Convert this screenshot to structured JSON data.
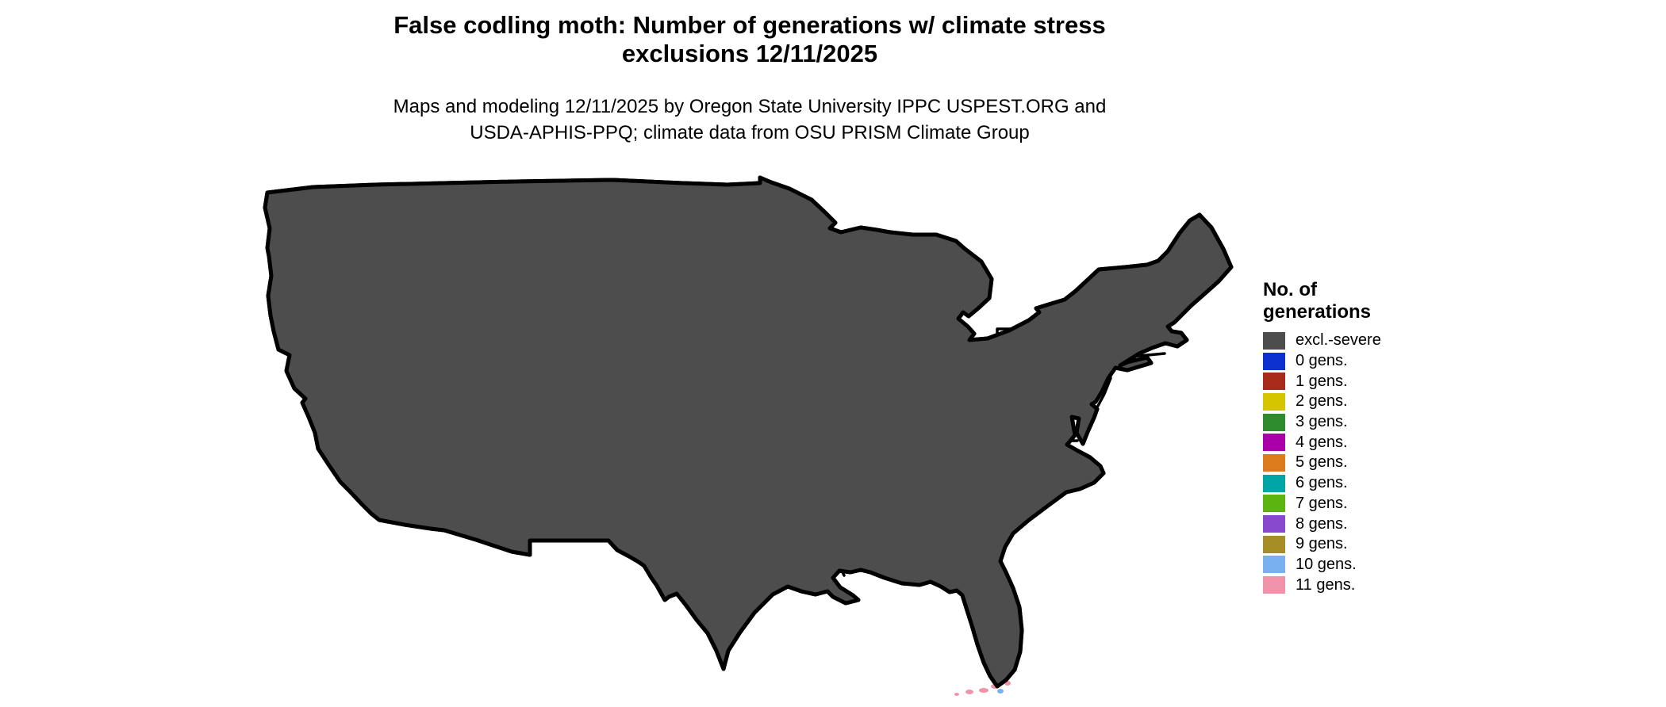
{
  "title": {
    "line1": "False codling moth: Number of generations w/ climate stress",
    "line2": "exclusions 12/11/2025"
  },
  "subtitle": {
    "line1": "Maps and modeling 12/11/2025 by Oregon State University IPPC USPEST.ORG and",
    "line2": "USDA-APHIS-PPQ; climate data from OSU PRISM Climate Group"
  },
  "legend": {
    "title_line1": "No. of",
    "title_line2": "generations",
    "items": [
      {
        "gen": "excl",
        "label": "excl.-severe",
        "color": "#4D4D4D"
      },
      {
        "gen": "0",
        "label": "0 gens.",
        "color": "#0C31CE"
      },
      {
        "gen": "1",
        "label": "1 gens.",
        "color": "#A82A1B"
      },
      {
        "gen": "2",
        "label": "2 gens.",
        "color": "#D4C500"
      },
      {
        "gen": "3",
        "label": "3 gens.",
        "color": "#2E8B2E"
      },
      {
        "gen": "4",
        "label": "4 gens.",
        "color": "#AA00AA"
      },
      {
        "gen": "5",
        "label": "5 gens.",
        "color": "#DB7B1C"
      },
      {
        "gen": "6",
        "label": "6 gens.",
        "color": "#00A5A5"
      },
      {
        "gen": "7",
        "label": "7 gens.",
        "color": "#5CB410"
      },
      {
        "gen": "8",
        "label": "8 gens.",
        "color": "#8849CF"
      },
      {
        "gen": "9",
        "label": "9 gens.",
        "color": "#A68D26"
      },
      {
        "gen": "10",
        "label": "10 gens.",
        "color": "#79B1F0"
      },
      {
        "gen": "11",
        "label": "11 gens.",
        "color": "#F093A9"
      }
    ]
  },
  "map": {
    "region": "Contiguous United States",
    "land_fill": "#4D4D4D",
    "border_color": "#000000",
    "water_fill": "#FFFFFF",
    "inland_water_fill": "#000000"
  }
}
